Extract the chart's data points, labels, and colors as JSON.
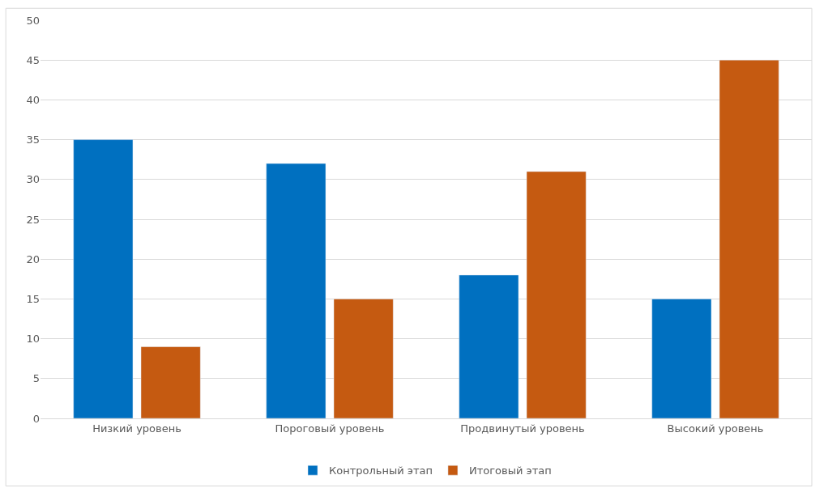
{
  "chart_data": {
    "type": "bar",
    "categories": [
      "Низкий уровень",
      "Пороговый уровень",
      "Продвинутый уровень",
      "Высокий уровень"
    ],
    "series": [
      {
        "name": "Контрольный этап",
        "color": "#0070c0",
        "values": [
          35,
          32,
          18,
          15
        ]
      },
      {
        "name": "Итоговый этап",
        "color": "#c55a11",
        "values": [
          9,
          15,
          31,
          45
        ]
      }
    ],
    "ylim": [
      0,
      50
    ],
    "yticks": [
      0,
      5,
      10,
      15,
      20,
      25,
      30,
      35,
      40,
      45,
      50
    ],
    "grid": "y",
    "legend": "bottom"
  }
}
